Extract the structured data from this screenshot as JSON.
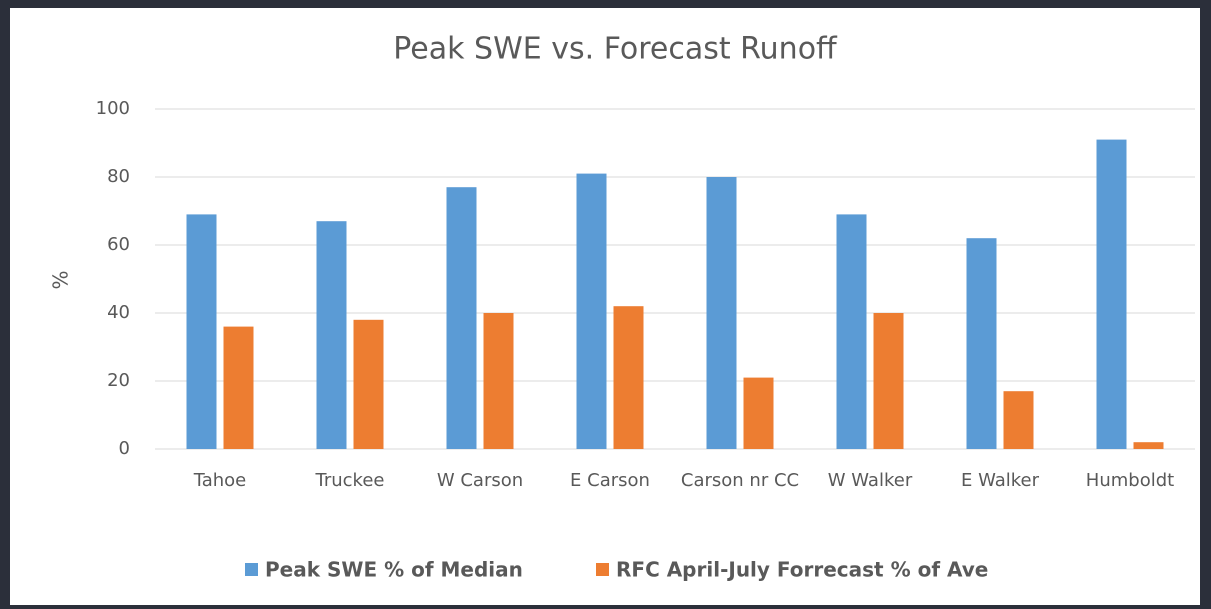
{
  "chart_data": {
    "type": "bar",
    "title": "Peak SWE vs. Forecast Runoff",
    "y_label": "%",
    "categories": [
      "Tahoe",
      "Truckee",
      "W Carson",
      "E Carson",
      "Carson nr CC",
      "W Walker",
      "E Walker",
      "Humboldt"
    ],
    "series": [
      {
        "name": "Peak SWE % of Median",
        "color": "#5b9bd5",
        "values": [
          69,
          67,
          77,
          81,
          80,
          69,
          62,
          91
        ]
      },
      {
        "name": "RFC April-July Forrecast % of Ave",
        "color": "#ed7d31",
        "values": [
          36,
          38,
          40,
          42,
          21,
          40,
          17,
          2
        ]
      }
    ],
    "ylim": [
      0,
      100
    ],
    "yticks": [
      0,
      20,
      40,
      60,
      80,
      100
    ],
    "grid": true
  }
}
